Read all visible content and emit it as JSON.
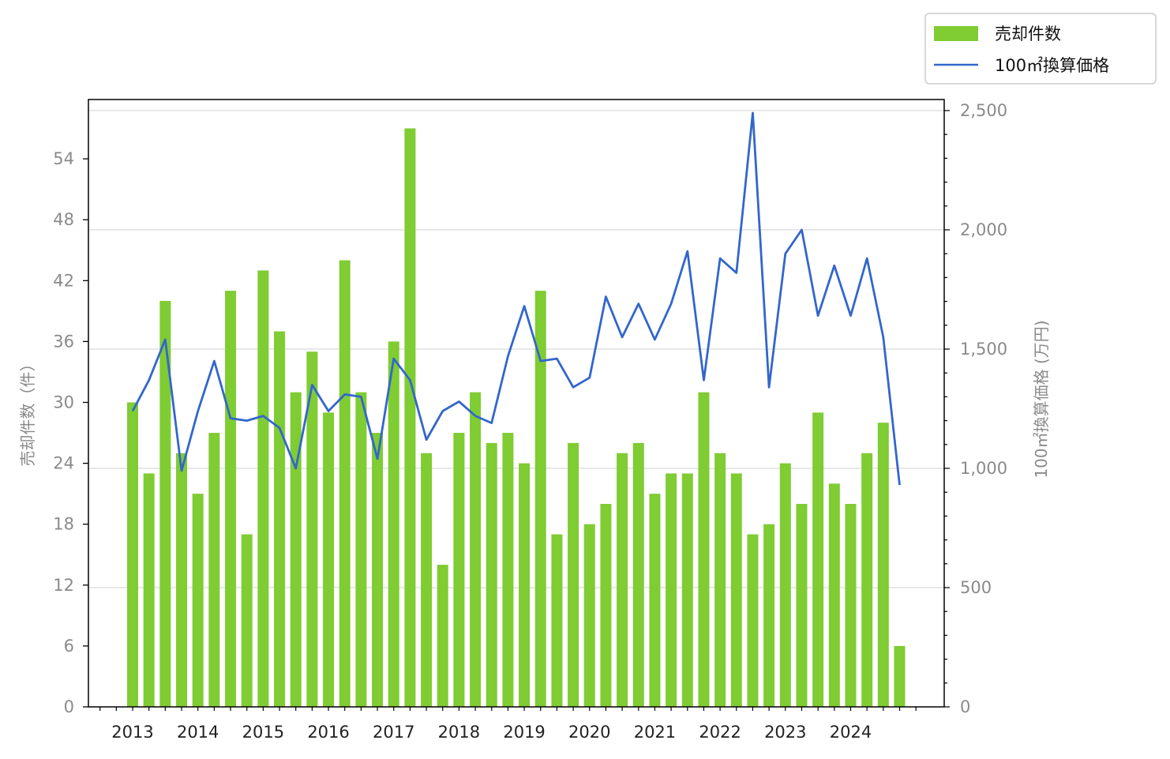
{
  "chart_data": {
    "type": "bar+line",
    "x": [
      "2013Q1",
      "2013Q2",
      "2013Q3",
      "2013Q4",
      "2014Q1",
      "2014Q2",
      "2014Q3",
      "2014Q4",
      "2015Q1",
      "2015Q2",
      "2015Q3",
      "2015Q4",
      "2016Q1",
      "2016Q2",
      "2016Q3",
      "2016Q4",
      "2017Q1",
      "2017Q2",
      "2017Q3",
      "2017Q4",
      "2018Q1",
      "2018Q2",
      "2018Q3",
      "2018Q4",
      "2019Q1",
      "2019Q2",
      "2019Q3",
      "2019Q4",
      "2020Q1",
      "2020Q2",
      "2020Q3",
      "2020Q4",
      "2021Q1",
      "2021Q2",
      "2021Q3",
      "2021Q4",
      "2022Q1",
      "2022Q2",
      "2022Q3",
      "2022Q4",
      "2023Q1",
      "2023Q2",
      "2023Q3",
      "2023Q4",
      "2024Q1",
      "2024Q2",
      "2024Q3",
      "2024Q4"
    ],
    "x_tick_labels": [
      "2013",
      "2014",
      "2015",
      "2016",
      "2017",
      "2018",
      "2019",
      "2020",
      "2021",
      "2022",
      "2023",
      "2024"
    ],
    "series": [
      {
        "name": "売却件数",
        "type": "bar",
        "axis": "left",
        "color": "#7fcc33",
        "values": [
          30,
          23,
          40,
          25,
          21,
          27,
          41,
          17,
          43,
          37,
          31,
          35,
          29,
          44,
          31,
          27,
          36,
          57,
          25,
          14,
          27,
          31,
          26,
          27,
          24,
          41,
          17,
          26,
          18,
          20,
          25,
          26,
          21,
          23,
          23,
          31,
          25,
          23,
          17,
          18,
          24,
          20,
          29,
          22,
          20,
          25,
          28,
          6
        ]
      },
      {
        "name": "100㎡換算価格",
        "type": "line",
        "axis": "right",
        "color": "#3366cc",
        "values": [
          1240,
          1370,
          1540,
          990,
          1240,
          1450,
          1210,
          1200,
          1220,
          1170,
          1000,
          1350,
          1240,
          1310,
          1300,
          1040,
          1460,
          1370,
          1120,
          1240,
          1280,
          1220,
          1190,
          1470,
          1680,
          1450,
          1460,
          1340,
          1380,
          1720,
          1550,
          1690,
          1540,
          1690,
          1910,
          1370,
          1880,
          1820,
          2490,
          1340,
          1900,
          2000,
          1640,
          1850,
          1640,
          1880,
          1550,
          930
        ]
      }
    ],
    "y_left": {
      "label": "売却件数（件）",
      "ylim": [
        0,
        60
      ],
      "ticks": [
        0,
        6,
        12,
        18,
        24,
        30,
        36,
        42,
        48,
        54
      ]
    },
    "y_right": {
      "label": "100㎡換算価格 (万円)",
      "ylim": [
        0,
        2500
      ],
      "ticks": [
        0,
        500,
        1000,
        1500,
        2000,
        2500
      ],
      "tick_labels": [
        "0",
        "500",
        "1,000",
        "1,500",
        "2,000",
        "2,500"
      ]
    },
    "grid": true,
    "legend_position": "top-right, outside plot"
  }
}
